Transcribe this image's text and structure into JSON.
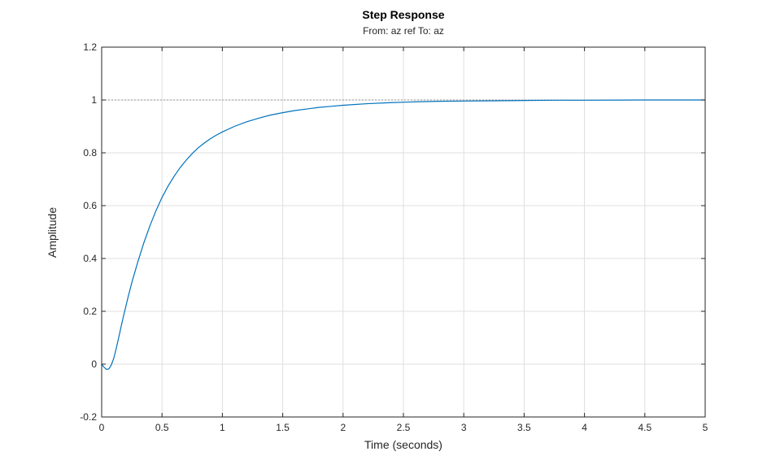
{
  "chart_data": {
    "type": "line",
    "title": "Step Response",
    "subtitle": "From: az ref  To: az",
    "xlabel": "Time (seconds)",
    "ylabel": "Amplitude",
    "xlim": [
      0,
      5
    ],
    "ylim": [
      -0.2,
      1.2
    ],
    "xticks": [
      0,
      0.5,
      1,
      1.5,
      2,
      2.5,
      3,
      3.5,
      4,
      4.5,
      5
    ],
    "xtick_labels": [
      "0",
      "0.5",
      "1",
      "1.5",
      "2",
      "2.5",
      "3",
      "3.5",
      "4",
      "4.5",
      "5"
    ],
    "yticks": [
      -0.2,
      0,
      0.2,
      0.4,
      0.6,
      0.8,
      1,
      1.2
    ],
    "ytick_labels": [
      "-0.2",
      "0",
      "0.2",
      "0.4",
      "0.6",
      "0.8",
      "1",
      "1.2"
    ],
    "grid": true,
    "steady_state_reference": 1,
    "colors": {
      "series": "#0072BD",
      "grid": "#dfdfdf",
      "axes": "#262626",
      "reference": "#808080"
    },
    "series": [
      {
        "x": [
          0,
          0.02,
          0.04,
          0.06,
          0.08,
          0.1,
          0.12,
          0.14,
          0.16,
          0.18,
          0.2,
          0.22,
          0.25,
          0.3,
          0.35,
          0.4,
          0.45,
          0.5,
          0.55,
          0.6,
          0.65,
          0.7,
          0.75,
          0.8,
          0.85,
          0.9,
          0.95,
          1.0,
          1.1,
          1.2,
          1.3,
          1.4,
          1.5,
          1.6,
          1.7,
          1.8,
          1.9,
          2.0,
          2.2,
          2.4,
          2.6,
          2.8,
          3.0,
          3.25,
          3.5,
          3.75,
          4.0,
          4.5,
          5.0
        ],
        "y": [
          0,
          -0.012,
          -0.02,
          -0.018,
          -0.003,
          0.022,
          0.058,
          0.098,
          0.14,
          0.18,
          0.218,
          0.256,
          0.309,
          0.388,
          0.46,
          0.524,
          0.581,
          0.631,
          0.674,
          0.711,
          0.744,
          0.772,
          0.797,
          0.819,
          0.837,
          0.853,
          0.867,
          0.879,
          0.9,
          0.917,
          0.931,
          0.943,
          0.952,
          0.96,
          0.966,
          0.972,
          0.976,
          0.98,
          0.986,
          0.99,
          0.993,
          0.995,
          0.996,
          0.997,
          0.998,
          0.999,
          0.999,
          1.0,
          1.0
        ]
      }
    ]
  }
}
